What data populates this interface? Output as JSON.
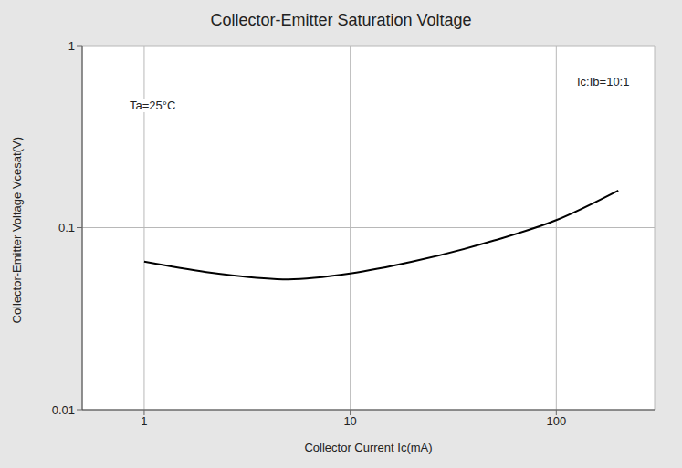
{
  "chart_data": {
    "type": "line",
    "title": "Collector-Emitter Saturation Voltage",
    "x_label": "Collector Current  Ic(mA)",
    "y_label": "Collector-Emitter Voltage Vcesat(V)",
    "annotations": [
      "Ta=25°C",
      "Ic:Ib=10:1"
    ],
    "x": [
      1,
      2,
      5,
      10,
      20,
      50,
      100,
      200
    ],
    "values": [
      0.065,
      0.057,
      0.052,
      0.056,
      0.065,
      0.085,
      0.11,
      0.16
    ],
    "color": "#000000",
    "xlim": [
      0.5,
      300
    ],
    "xticks": [
      1,
      10,
      100
    ],
    "ylim": [
      0.01,
      1
    ],
    "yticks": [
      0.01,
      0.1,
      1
    ],
    "log": true,
    "grid": true
  }
}
